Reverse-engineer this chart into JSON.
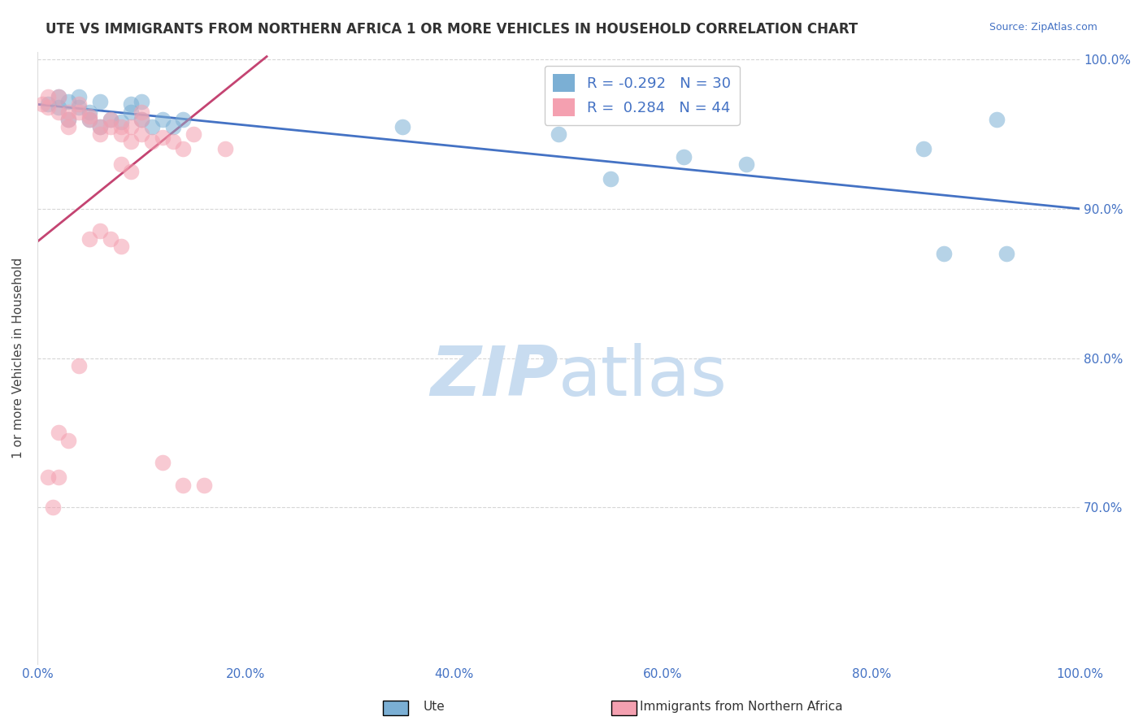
{
  "title": "UTE VS IMMIGRANTS FROM NORTHERN AFRICA 1 OR MORE VEHICLES IN HOUSEHOLD CORRELATION CHART",
  "source_text": "Source: ZipAtlas.com",
  "ylabel": "1 or more Vehicles in Household",
  "xlabel": "",
  "legend_label1": "Ute",
  "legend_label2": "Immigrants from Northern Africa",
  "R1": -0.292,
  "N1": 30,
  "R2": 0.284,
  "N2": 44,
  "color1": "#7BAFD4",
  "color2": "#F4A0B0",
  "trendline1_color": "#4472C4",
  "trendline2_color": "#C44472",
  "watermark_color": "#C8DCF0",
  "xlim": [
    0.0,
    1.0
  ],
  "ylim": [
    0.595,
    1.005
  ],
  "xtick_labels": [
    "0.0%",
    "20.0%",
    "40.0%",
    "60.0%",
    "80.0%",
    "100.0%"
  ],
  "xtick_vals": [
    0.0,
    0.2,
    0.4,
    0.6,
    0.8,
    1.0
  ],
  "ytick_labels": [
    "100.0%",
    "90.0%",
    "80.0%",
    "70.0%"
  ],
  "ytick_vals": [
    1.0,
    0.9,
    0.8,
    0.7
  ],
  "ytick_right_labels": [
    "100.0%",
    "90.0%",
    "80.0%",
    "70.0%"
  ],
  "blue_x": [
    0.01,
    0.02,
    0.02,
    0.03,
    0.03,
    0.04,
    0.04,
    0.05,
    0.05,
    0.06,
    0.06,
    0.07,
    0.08,
    0.09,
    0.09,
    0.1,
    0.1,
    0.11,
    0.12,
    0.13,
    0.14,
    0.55,
    0.62,
    0.68,
    0.85,
    0.87,
    0.92,
    0.93,
    0.5,
    0.35
  ],
  "blue_y": [
    0.97,
    0.968,
    0.975,
    0.96,
    0.972,
    0.968,
    0.975,
    0.965,
    0.96,
    0.972,
    0.955,
    0.96,
    0.958,
    0.97,
    0.965,
    0.972,
    0.96,
    0.955,
    0.96,
    0.955,
    0.96,
    0.92,
    0.935,
    0.93,
    0.94,
    0.87,
    0.96,
    0.87,
    0.95,
    0.955
  ],
  "pink_x": [
    0.005,
    0.01,
    0.01,
    0.02,
    0.02,
    0.03,
    0.03,
    0.03,
    0.04,
    0.04,
    0.05,
    0.05,
    0.06,
    0.06,
    0.07,
    0.07,
    0.08,
    0.08,
    0.09,
    0.09,
    0.1,
    0.1,
    0.1,
    0.11,
    0.12,
    0.13,
    0.14,
    0.15,
    0.05,
    0.06,
    0.07,
    0.08,
    0.08,
    0.09,
    0.18,
    0.04,
    0.03,
    0.02,
    0.02,
    0.01,
    0.015,
    0.12,
    0.14,
    0.16
  ],
  "pink_y": [
    0.97,
    0.975,
    0.968,
    0.975,
    0.965,
    0.965,
    0.96,
    0.955,
    0.97,
    0.965,
    0.962,
    0.96,
    0.955,
    0.95,
    0.96,
    0.955,
    0.955,
    0.95,
    0.955,
    0.945,
    0.96,
    0.95,
    0.965,
    0.945,
    0.948,
    0.945,
    0.94,
    0.95,
    0.88,
    0.885,
    0.88,
    0.875,
    0.93,
    0.925,
    0.94,
    0.795,
    0.745,
    0.75,
    0.72,
    0.72,
    0.7,
    0.73,
    0.715,
    0.715
  ],
  "trendline1_x0": 0.0,
  "trendline1_x1": 1.0,
  "trendline1_y0": 0.97,
  "trendline1_y1": 0.9,
  "trendline2_x0": 0.0,
  "trendline2_x1": 0.22,
  "trendline2_y0": 0.878,
  "trendline2_y1": 1.002
}
